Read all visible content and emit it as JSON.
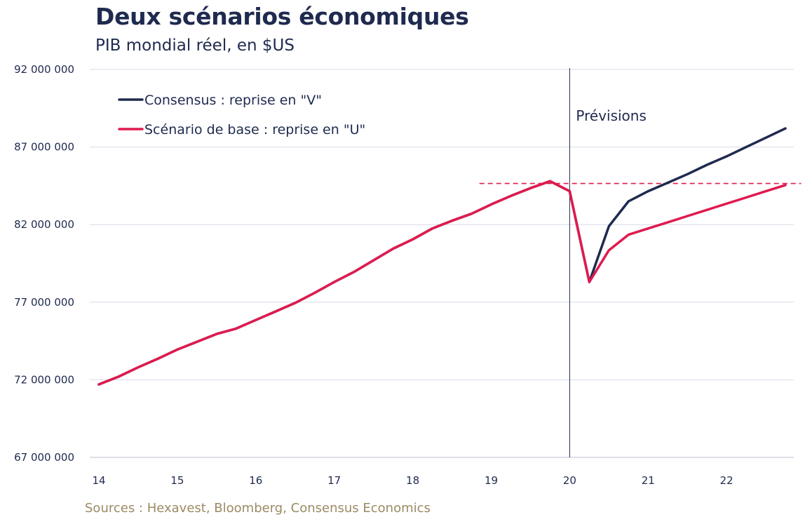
{
  "colors": {
    "consensus": "#1f2a4f",
    "base": "#e01a4f",
    "grid": "#d9dbe8",
    "text": "#1f2a4f",
    "source": "#9c8a63"
  },
  "chart_data": {
    "type": "line",
    "title": "Deux scénarios économiques",
    "subtitle": "PIB mondial réel, en $US",
    "source": "Sources : Hexavest, Bloomberg, Consensus Economics",
    "xlabel": "",
    "ylabel": "",
    "xlim": [
      14,
      22.95
    ],
    "ylim": [
      67000000,
      92000000
    ],
    "x_ticks": [
      14,
      15,
      16,
      17,
      18,
      19,
      20,
      21,
      22
    ],
    "x_tick_labels": [
      "14",
      "15",
      "16",
      "17",
      "18",
      "19",
      "20",
      "21",
      "22"
    ],
    "y_ticks": [
      67000000,
      72000000,
      77000000,
      82000000,
      87000000,
      92000000
    ],
    "y_tick_labels": [
      "67 000 000",
      "72 000 000",
      "77 000 000",
      "82 000 000",
      "87 000 000",
      "92 000 000"
    ],
    "grid": true,
    "legend_position": "top-left",
    "series": [
      {
        "name": "Consensus : reprise en \"V\"",
        "color": "#1f2a4f",
        "x": [
          14,
          14.25,
          14.5,
          14.75,
          15,
          15.25,
          15.5,
          15.75,
          16,
          16.25,
          16.5,
          16.75,
          17,
          17.25,
          17.5,
          17.75,
          18,
          18.25,
          18.5,
          18.75,
          19,
          19.25,
          19.5,
          19.75,
          20,
          20.25,
          20.5,
          20.75,
          21,
          21.25,
          21.5,
          21.75,
          22,
          22.25,
          22.5,
          22.75
        ],
        "y": [
          71700000,
          72200000,
          72800000,
          73350000,
          73950000,
          74450000,
          74950000,
          75300000,
          75850000,
          76400000,
          76950000,
          77600000,
          78300000,
          78950000,
          79700000,
          80450000,
          81050000,
          81750000,
          82250000,
          82700000,
          83300000,
          83850000,
          84350000,
          84800000,
          84150000,
          78300000,
          81900000,
          83500000,
          84150000,
          84700000,
          85250000,
          85850000,
          86400000,
          87000000,
          87600000,
          88200000
        ]
      },
      {
        "name": "Scénario de base : reprise en \"U\"",
        "color": "#e01a4f",
        "x": [
          14,
          14.25,
          14.5,
          14.75,
          15,
          15.25,
          15.5,
          15.75,
          16,
          16.25,
          16.5,
          16.75,
          17,
          17.25,
          17.5,
          17.75,
          18,
          18.25,
          18.5,
          18.75,
          19,
          19.25,
          19.5,
          19.75,
          20,
          20.25,
          20.5,
          20.75,
          21,
          21.25,
          21.5,
          21.75,
          22,
          22.25,
          22.5,
          22.75
        ],
        "y": [
          71700000,
          72200000,
          72800000,
          73350000,
          73950000,
          74450000,
          74950000,
          75300000,
          75850000,
          76400000,
          76950000,
          77600000,
          78300000,
          78950000,
          79700000,
          80450000,
          81050000,
          81750000,
          82250000,
          82700000,
          83300000,
          83850000,
          84350000,
          84800000,
          84150000,
          78300000,
          80350000,
          81350000,
          81750000,
          82150000,
          82550000,
          82950000,
          83350000,
          83750000,
          84150000,
          84550000
        ]
      }
    ],
    "reference_hline": {
      "y": 84650000,
      "x_from": 18.85,
      "x_to": 22.95,
      "style": "dashed",
      "color": "#e01a4f"
    },
    "reference_vline": {
      "x": 20
    },
    "annotations": [
      {
        "text": "Prévisions"
      }
    ]
  }
}
